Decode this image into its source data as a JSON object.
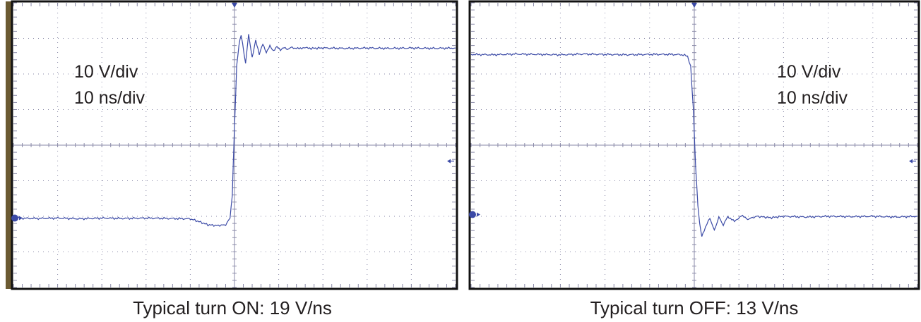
{
  "theme": {
    "trace": "#3b4aa6",
    "grid": "#8a8aa8",
    "frame": "#111111",
    "left_bar": "#6b5a32"
  },
  "chart_data": [
    {
      "type": "line",
      "title": "Typical turn ON: 19 V/ns",
      "annotations": [
        "10 V/div",
        "10 ns/div"
      ],
      "divisions": {
        "x": 10,
        "y": 8
      },
      "xlim": [
        0,
        10
      ],
      "ylim": [
        0,
        8
      ],
      "units": {
        "x": "div (10 ns/div)",
        "y": "div (10 V/div)"
      },
      "grid": true,
      "legend": "none",
      "trigger_position_div": 5,
      "ground_marker_div": 1.95,
      "trigger_level_marker_div": 3.55,
      "series": [
        {
          "x": [
            0,
            0.5,
            1,
            1.5,
            2,
            2.5,
            3,
            3.5,
            4,
            4.2,
            4.4,
            4.6,
            4.8,
            4.9,
            4.95,
            5.0,
            5.05,
            5.1,
            5.15,
            5.25,
            5.32,
            5.4,
            5.48,
            5.56,
            5.64,
            5.72,
            5.8,
            5.88,
            5.96,
            6.04,
            6.12,
            6.2,
            6.3,
            6.4,
            6.55,
            6.7,
            7,
            7.5,
            8,
            8.5,
            9,
            9.5,
            10
          ],
          "y": [
            1.95,
            1.94,
            1.95,
            1.93,
            1.95,
            1.94,
            1.95,
            1.94,
            1.93,
            1.85,
            1.76,
            1.74,
            1.76,
            1.95,
            2.6,
            4.5,
            6.2,
            6.8,
            7.1,
            6.3,
            7.1,
            6.45,
            6.95,
            6.55,
            6.85,
            6.6,
            6.8,
            6.65,
            6.78,
            6.68,
            6.76,
            6.7,
            6.75,
            6.71,
            6.74,
            6.72,
            6.73,
            6.72,
            6.73,
            6.72,
            6.73,
            6.72,
            6.73
          ]
        }
      ]
    },
    {
      "type": "line",
      "title": "Typical turn OFF: 13 V/ns",
      "annotations": [
        "10 V/div",
        "10 ns/div"
      ],
      "divisions": {
        "x": 10,
        "y": 8
      },
      "xlim": [
        0,
        10
      ],
      "ylim": [
        0,
        8
      ],
      "units": {
        "x": "div (10 ns/div)",
        "y": "div (10 V/div)"
      },
      "grid": true,
      "legend": "none",
      "trigger_position_div": 5,
      "ground_marker_div": 2.05,
      "trigger_level_marker_div": 3.55,
      "series": [
        {
          "x": [
            0,
            0.5,
            1,
            1.5,
            2,
            2.5,
            3,
            3.5,
            4,
            4.5,
            4.75,
            4.85,
            4.92,
            4.98,
            5.03,
            5.08,
            5.12,
            5.17,
            5.25,
            5.35,
            5.45,
            5.55,
            5.65,
            5.75,
            5.9,
            6.05,
            6.2,
            6.4,
            6.7,
            7,
            7.5,
            8,
            8.5,
            9,
            9.5,
            10
          ],
          "y": [
            6.55,
            6.54,
            6.56,
            6.55,
            6.54,
            6.56,
            6.55,
            6.54,
            6.55,
            6.55,
            6.54,
            6.5,
            6.2,
            5.0,
            3.4,
            2.3,
            1.8,
            1.45,
            1.7,
            1.95,
            1.6,
            1.98,
            1.75,
            2.0,
            1.85,
            2.02,
            1.92,
            2.0,
            1.96,
            2.0,
            1.98,
            2.0,
            1.99,
            2.0,
            1.98,
            2.0
          ]
        }
      ]
    }
  ]
}
